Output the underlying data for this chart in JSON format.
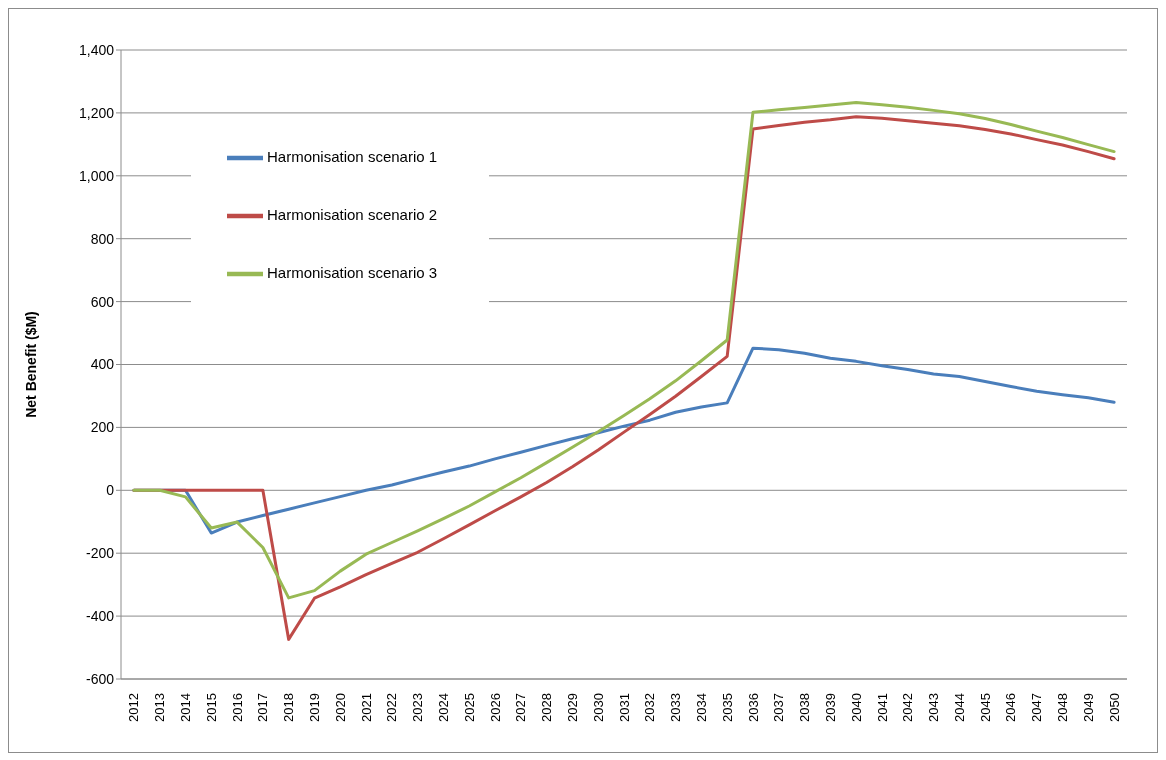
{
  "chart_data": {
    "type": "line",
    "ylabel": "Net Benefit ($M)",
    "categories": [
      "2012",
      "2013",
      "2014",
      "2015",
      "2016",
      "2017",
      "2018",
      "2019",
      "2020",
      "2021",
      "2022",
      "2023",
      "2024",
      "2025",
      "2026",
      "2027",
      "2028",
      "2029",
      "2030",
      "2031",
      "2032",
      "2033",
      "2034",
      "2035",
      "2036",
      "2037",
      "2038",
      "2039",
      "2040",
      "2041",
      "2042",
      "2043",
      "2044",
      "2045",
      "2046",
      "2047",
      "2048",
      "2049",
      "2050"
    ],
    "series": [
      {
        "name": "Harmonisation scenario 1",
        "color": "#4a7ebb",
        "values": [
          0,
          0,
          0,
          -136,
          -101,
          -80,
          -60,
          -40,
          -20,
          0,
          17,
          38,
          58,
          77,
          100,
          121,
          143,
          164,
          183,
          204,
          223,
          248,
          265,
          278,
          452,
          447,
          436,
          420,
          410,
          396,
          384,
          370,
          362,
          346,
          330,
          315,
          304,
          294,
          280
        ]
      },
      {
        "name": "Harmonisation scenario 2",
        "color": "#be4b48",
        "values": [
          0,
          0,
          0,
          0,
          0,
          0,
          -474,
          -343,
          -307,
          -268,
          -232,
          -197,
          -154,
          -110,
          -65,
          -21,
          25,
          75,
          128,
          185,
          241,
          299,
          362,
          426,
          1149,
          1160,
          1170,
          1178,
          1188,
          1183,
          1175,
          1167,
          1159,
          1147,
          1133,
          1115,
          1098,
          1077,
          1054
        ]
      },
      {
        "name": "Harmonisation scenario 3",
        "color": "#98b954",
        "values": [
          0,
          0,
          -21,
          -120,
          -101,
          -182,
          -342,
          -319,
          -257,
          -203,
          -166,
          -129,
          -90,
          -50,
          -5,
          40,
          88,
          137,
          186,
          238,
          291,
          348,
          412,
          478,
          1202,
          1210,
          1217,
          1225,
          1233,
          1226,
          1218,
          1208,
          1197,
          1182,
          1163,
          1142,
          1122,
          1099,
          1077
        ]
      }
    ],
    "ylim": [
      -600,
      1400
    ],
    "yticks": [
      -600,
      -400,
      -200,
      0,
      200,
      400,
      600,
      800,
      {
        "value": 1000,
        "label": "1,000"
      },
      {
        "value": 1200,
        "label": "1,200"
      },
      {
        "value": 1400,
        "label": "1,400"
      }
    ],
    "grid": "y",
    "legend": "top left"
  }
}
